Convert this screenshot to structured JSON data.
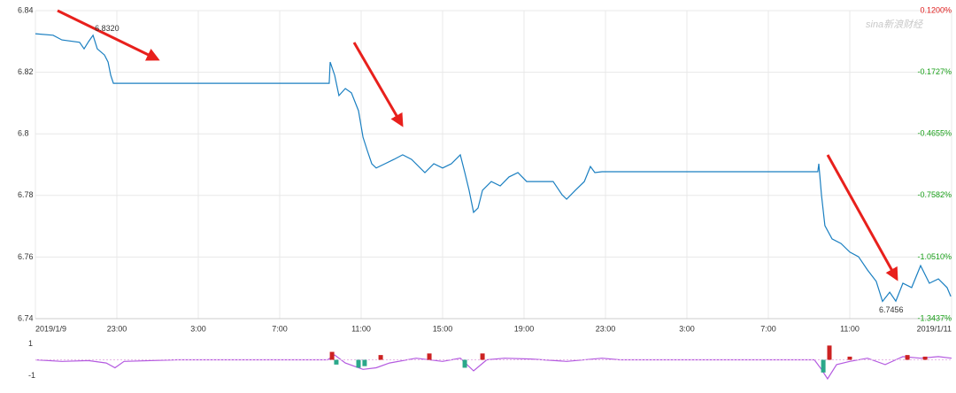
{
  "chart_data": [
    {
      "type": "line",
      "watermark": "sina新浪财经",
      "x": [
        0,
        0.87,
        1.3,
        2.17,
        2.39,
        2.61,
        2.83,
        3.04,
        3.39,
        3.57,
        3.7,
        3.83,
        14.43,
        14.48,
        14.7,
        14.91,
        15.22,
        15.52,
        15.87,
        16.09,
        16.3,
        16.52,
        16.74,
        17.17,
        17.61,
        18.04,
        18.48,
        19.13,
        19.57,
        20,
        20.43,
        20.87,
        21.09,
        21.3,
        21.52,
        21.74,
        21.96,
        22.39,
        22.83,
        23.26,
        23.7,
        24.13,
        24.78,
        25.43,
        25.87,
        26.09,
        26.52,
        26.96,
        27.26,
        27.48,
        27.83,
        38.43,
        38.48,
        38.61,
        38.78,
        39.13,
        39.57,
        40,
        40.43,
        40.87,
        41.3,
        41.61,
        41.96,
        42.26,
        42.61,
        43.04,
        43.48,
        43.91,
        44.35,
        44.78,
        44.96
      ],
      "series": [
        {
          "color": "#1a7fc1",
          "values": [
            6.8325,
            6.832,
            6.8305,
            6.8297,
            6.8276,
            6.8299,
            6.832,
            6.8276,
            6.8256,
            6.8233,
            6.819,
            6.8164,
            6.8164,
            6.8233,
            6.819,
            6.8124,
            6.8147,
            6.8133,
            6.8075,
            6.7989,
            6.7946,
            6.7903,
            6.7889,
            6.7903,
            6.7917,
            6.7932,
            6.7917,
            6.7874,
            6.7903,
            6.7889,
            6.7903,
            6.7932,
            6.7874,
            6.7817,
            6.7745,
            6.7759,
            6.7817,
            6.7845,
            6.7831,
            6.786,
            6.7874,
            6.7845,
            6.7845,
            6.7845,
            6.7802,
            6.7788,
            6.7817,
            6.7845,
            6.7894,
            6.7874,
            6.7877,
            6.7877,
            6.7903,
            6.7802,
            6.7702,
            6.7659,
            6.7644,
            6.7616,
            6.7601,
            6.7558,
            6.7521,
            6.7456,
            6.7486,
            6.7457,
            6.7515,
            6.7501,
            6.7572,
            6.7515,
            6.7529,
            6.7501,
            6.7472
          ]
        }
      ],
      "annotations": [
        {
          "text": "6.8320",
          "x": 2.83,
          "y": 6.832
        },
        {
          "text": "6.7456",
          "x": 41.61,
          "y": 6.7456
        }
      ],
      "xlim": [
        0,
        45
      ],
      "xticks": [
        {
          "value": 0,
          "label": "2019/1/9"
        },
        {
          "value": 4,
          "label": "23:00"
        },
        {
          "value": 8,
          "label": "3:00"
        },
        {
          "value": 12,
          "label": "7:00"
        },
        {
          "value": 16,
          "label": "11:00"
        },
        {
          "value": 20,
          "label": "15:00"
        },
        {
          "value": 24,
          "label": "19:00"
        },
        {
          "value": 28,
          "label": "23:00"
        },
        {
          "value": 32,
          "label": "3:00"
        },
        {
          "value": 36,
          "label": "7:00"
        },
        {
          "value": 40,
          "label": "11:00"
        },
        {
          "value": 45,
          "label": "2019/1/11"
        }
      ],
      "ylim": [
        6.74,
        6.84
      ],
      "yticks": [
        6.74,
        6.76,
        6.78,
        6.8,
        6.82,
        6.84
      ],
      "y2lim": [
        -1.3437,
        0.12
      ],
      "y2ticks": [
        {
          "value": 0.12,
          "label": "0.1200%"
        },
        {
          "value": -0.1727,
          "label": "-0.1727%"
        },
        {
          "value": -0.4655,
          "label": "-0.4655%"
        },
        {
          "value": -0.7582,
          "label": "-0.7582%"
        },
        {
          "value": -1.051,
          "label": "-1.0510%"
        },
        {
          "value": -1.3437,
          "label": "-1.3437%"
        }
      ],
      "grid": true
    },
    {
      "type": "line",
      "x": [
        0,
        1.3,
        2.61,
        3.48,
        3.91,
        4.35,
        6.96,
        14.35,
        14.7,
        15.22,
        16.09,
        16.74,
        17.39,
        18.7,
        20,
        20.87,
        21.52,
        22.17,
        23.04,
        24.35,
        26.09,
        27.83,
        28.7,
        38.26,
        38.61,
        38.91,
        39.35,
        40,
        40.87,
        41.74,
        42.61,
        43.48,
        44.35,
        45
      ],
      "series": [
        {
          "color": "#b45ae0",
          "values": [
            0,
            -0.1,
            -0.05,
            -0.2,
            -0.5,
            -0.1,
            0,
            0,
            0.3,
            -0.2,
            -0.6,
            -0.5,
            -0.2,
            0.1,
            -0.1,
            0.1,
            -0.7,
            0,
            0.1,
            0.05,
            -0.1,
            0.1,
            0,
            0,
            -0.6,
            -1.2,
            -0.3,
            -0.1,
            0.1,
            -0.3,
            0.2,
            0.1,
            0.2,
            0.1
          ]
        }
      ],
      "bars": {
        "x": [
          14.57,
          14.78,
          15.87,
          16.17,
          16.96,
          19.35,
          21.09,
          21.96,
          38.7,
          39,
          40,
          42.83,
          43.7
        ],
        "values": [
          0.5,
          -0.3,
          -0.5,
          -0.4,
          0.3,
          0.4,
          -0.5,
          0.4,
          -0.8,
          0.9,
          0.2,
          0.3,
          0.2
        ],
        "up_color": "#cc2222",
        "down_color": "#2aa88a"
      },
      "xlim": [
        0,
        45
      ],
      "ylim": [
        -1.2,
        1.2
      ],
      "yticks": [
        -1,
        1
      ]
    }
  ]
}
